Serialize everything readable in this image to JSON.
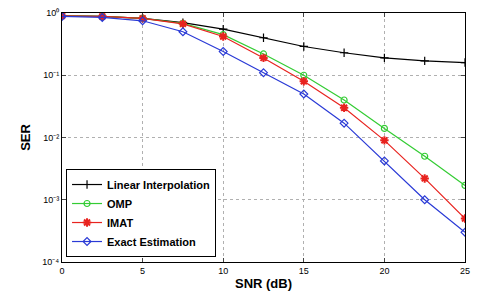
{
  "chart_data": {
    "type": "line",
    "x_label": "SNR (dB)",
    "y_label": "SER",
    "log": "y",
    "grid": true,
    "legend": "lower left",
    "x": [
      0,
      2.5,
      5,
      7.5,
      10,
      12.5,
      15,
      17.5,
      20,
      22.5,
      25
    ],
    "xlim": [
      0,
      25
    ],
    "xticks": [
      0,
      5,
      10,
      15,
      20,
      25
    ],
    "ylim": [
      0.0001,
      1
    ],
    "yticks": [
      {
        "value": 0.0001,
        "label": "10⁻⁴"
      },
      {
        "value": 0.001,
        "label": "10⁻³"
      },
      {
        "value": 0.01,
        "label": "10⁻²"
      },
      {
        "value": 0.1,
        "label": "10⁻¹"
      },
      {
        "value": 1,
        "label": "10⁰"
      }
    ],
    "series": [
      {
        "name": "Linear Interpolation",
        "color": "#000000",
        "marker": "plus",
        "values": [
          0.9,
          0.88,
          0.82,
          0.7,
          0.55,
          0.4,
          0.29,
          0.23,
          0.19,
          0.17,
          0.16
        ]
      },
      {
        "name": "OMP",
        "color": "#33cc33",
        "marker": "circle",
        "values": [
          0.9,
          0.88,
          0.82,
          0.68,
          0.45,
          0.22,
          0.1,
          0.04,
          0.014,
          0.005,
          0.0017
        ]
      },
      {
        "name": "IMAT",
        "color": "#e8231f",
        "marker": "star",
        "values": [
          0.9,
          0.88,
          0.82,
          0.67,
          0.42,
          0.19,
          0.08,
          0.03,
          0.009,
          0.0022,
          0.0005
        ]
      },
      {
        "name": "Exact Estimation",
        "color": "#2a3ad6",
        "marker": "diamond",
        "values": [
          0.88,
          0.85,
          0.75,
          0.5,
          0.24,
          0.11,
          0.05,
          0.017,
          0.0042,
          0.001,
          0.0003
        ]
      }
    ]
  }
}
